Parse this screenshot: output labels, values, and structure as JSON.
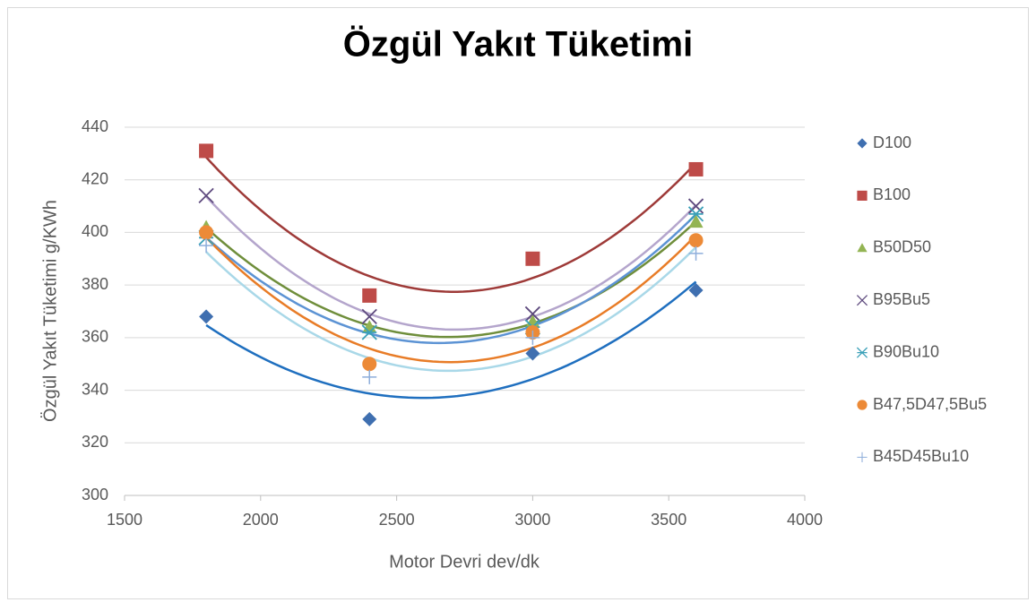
{
  "chart_data": {
    "type": "scatter",
    "title": "Özgül Yakıt Tüketimi",
    "xlabel": "Motor Devri dev/dk",
    "ylabel": "Özgül Yakıt Tüketimi g/KWh",
    "x": [
      1800,
      2400,
      3000,
      3600
    ],
    "xlim": [
      1500,
      4000
    ],
    "xticks": [
      1500,
      2000,
      2500,
      3000,
      3500,
      4000
    ],
    "ylim": [
      300,
      440
    ],
    "yticks": [
      300,
      320,
      340,
      360,
      380,
      400,
      420,
      440
    ],
    "grid": true,
    "legend": "right",
    "trendline_order": 2,
    "series": [
      {
        "name": "D100",
        "color": "#3f6fb0",
        "trendline_color": "#1f6fbf",
        "marker": "diamond",
        "values": [
          368,
          329,
          354,
          378
        ]
      },
      {
        "name": "B100",
        "color": "#be4b48",
        "trendline_color": "#9e3a38",
        "marker": "square",
        "values": [
          431,
          376,
          390,
          424
        ]
      },
      {
        "name": "B50D50",
        "color": "#93b453",
        "trendline_color": "#6f8e3b",
        "marker": "triangle",
        "values": [
          402,
          364,
          366,
          404
        ]
      },
      {
        "name": "B95Bu5",
        "color": "#5e4a7e",
        "trendline_color": "#b4a5cc",
        "marker": "x",
        "values": [
          414,
          368,
          369,
          410
        ]
      },
      {
        "name": "B90Bu10",
        "color": "#3aa0b8",
        "trendline_color": "#5c93d4",
        "marker": "star",
        "values": [
          398,
          362,
          364,
          407
        ]
      },
      {
        "name": "B47,5D47,5Bu5",
        "color": "#ec8a37",
        "trendline_color": "#e87c27",
        "marker": "circle",
        "values": [
          400,
          350,
          362,
          397
        ]
      },
      {
        "name": "B45D45Bu10",
        "color": "#8eaedb",
        "trendline_color": "#a9d8e8",
        "marker": "plus",
        "values": [
          395,
          345,
          360,
          392
        ]
      }
    ]
  }
}
